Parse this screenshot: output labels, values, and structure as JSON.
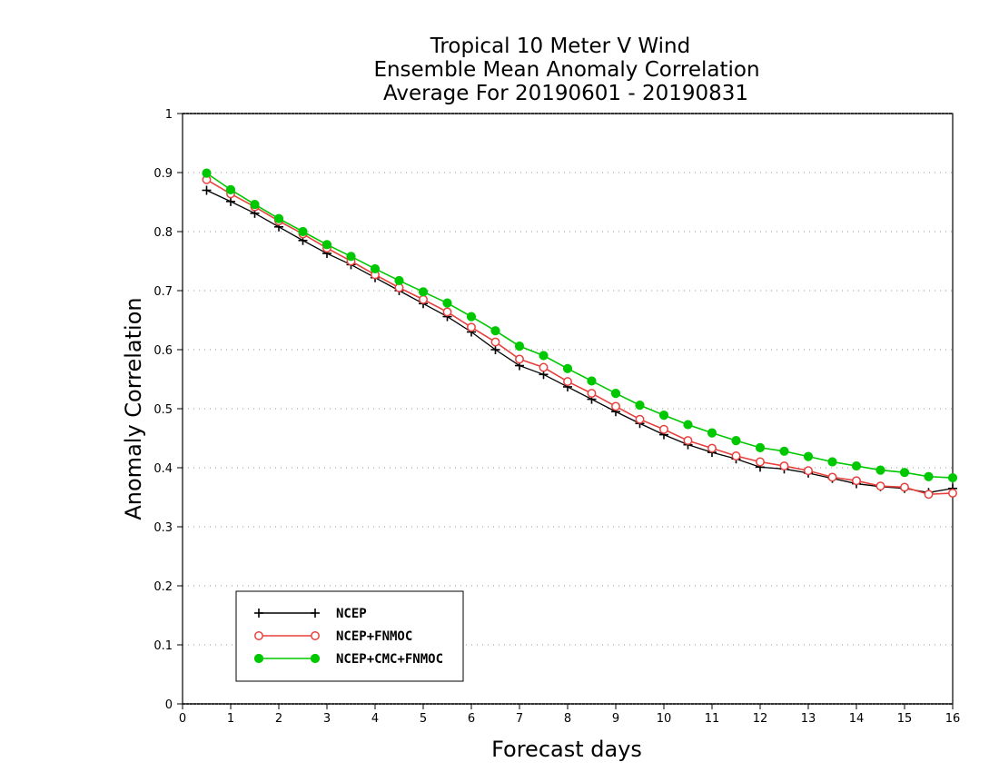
{
  "chart_data": {
    "type": "line",
    "title": [
      "Tropical 10 Meter V Wind",
      "Ensemble Mean Anomaly Correlation",
      "Average For 20190601 - 20190831"
    ],
    "xlabel": "Forecast days",
    "ylabel": "Anomaly Correlation",
    "xlim": [
      0,
      16
    ],
    "ylim": [
      0,
      1
    ],
    "x_ticks": [
      "0",
      "1",
      "2",
      "3",
      "4",
      "5",
      "6",
      "7",
      "8",
      "9",
      "10",
      "11",
      "12",
      "13",
      "14",
      "15",
      "16"
    ],
    "y_ticks": [
      "0",
      "0.1",
      "0.2",
      "0.3",
      "0.4",
      "0.5",
      "0.6",
      "0.7",
      "0.8",
      "0.9",
      "1"
    ],
    "grid": "horizontal dotted",
    "legend_position": "bottom-left",
    "x": [
      0.5,
      1,
      1.5,
      2,
      2.5,
      3,
      3.5,
      4,
      4.5,
      5,
      5.5,
      6,
      6.5,
      7,
      7.5,
      8,
      8.5,
      9,
      9.5,
      10,
      10.5,
      11,
      11.5,
      12,
      12.5,
      13,
      13.5,
      14,
      14.5,
      15,
      15.5,
      16
    ],
    "series": [
      {
        "name": "NCEP",
        "color": "#000000",
        "marker": "plus",
        "values": [
          0.87,
          0.851,
          0.831,
          0.808,
          0.785,
          0.763,
          0.744,
          0.722,
          0.7,
          0.678,
          0.656,
          0.63,
          0.6,
          0.573,
          0.558,
          0.537,
          0.516,
          0.495,
          0.475,
          0.456,
          0.439,
          0.426,
          0.415,
          0.401,
          0.398,
          0.391,
          0.382,
          0.373,
          0.368,
          0.365,
          0.358,
          0.365
        ]
      },
      {
        "name": "NCEP+FNMOC",
        "color": "#e8403c",
        "marker": "open-circle",
        "values": [
          0.888,
          0.864,
          0.842,
          0.818,
          0.796,
          0.772,
          0.75,
          0.727,
          0.705,
          0.685,
          0.664,
          0.638,
          0.613,
          0.584,
          0.57,
          0.546,
          0.526,
          0.504,
          0.482,
          0.465,
          0.446,
          0.433,
          0.42,
          0.41,
          0.403,
          0.395,
          0.384,
          0.378,
          0.369,
          0.367,
          0.355,
          0.357
        ]
      },
      {
        "name": "NCEP+CMC+FNMOC",
        "color": "#00c800",
        "marker": "filled-circle",
        "values": [
          0.899,
          0.871,
          0.846,
          0.822,
          0.8,
          0.778,
          0.758,
          0.737,
          0.717,
          0.698,
          0.679,
          0.656,
          0.632,
          0.606,
          0.59,
          0.568,
          0.547,
          0.526,
          0.506,
          0.489,
          0.473,
          0.459,
          0.446,
          0.434,
          0.428,
          0.419,
          0.41,
          0.403,
          0.396,
          0.392,
          0.385,
          0.383
        ]
      }
    ]
  }
}
